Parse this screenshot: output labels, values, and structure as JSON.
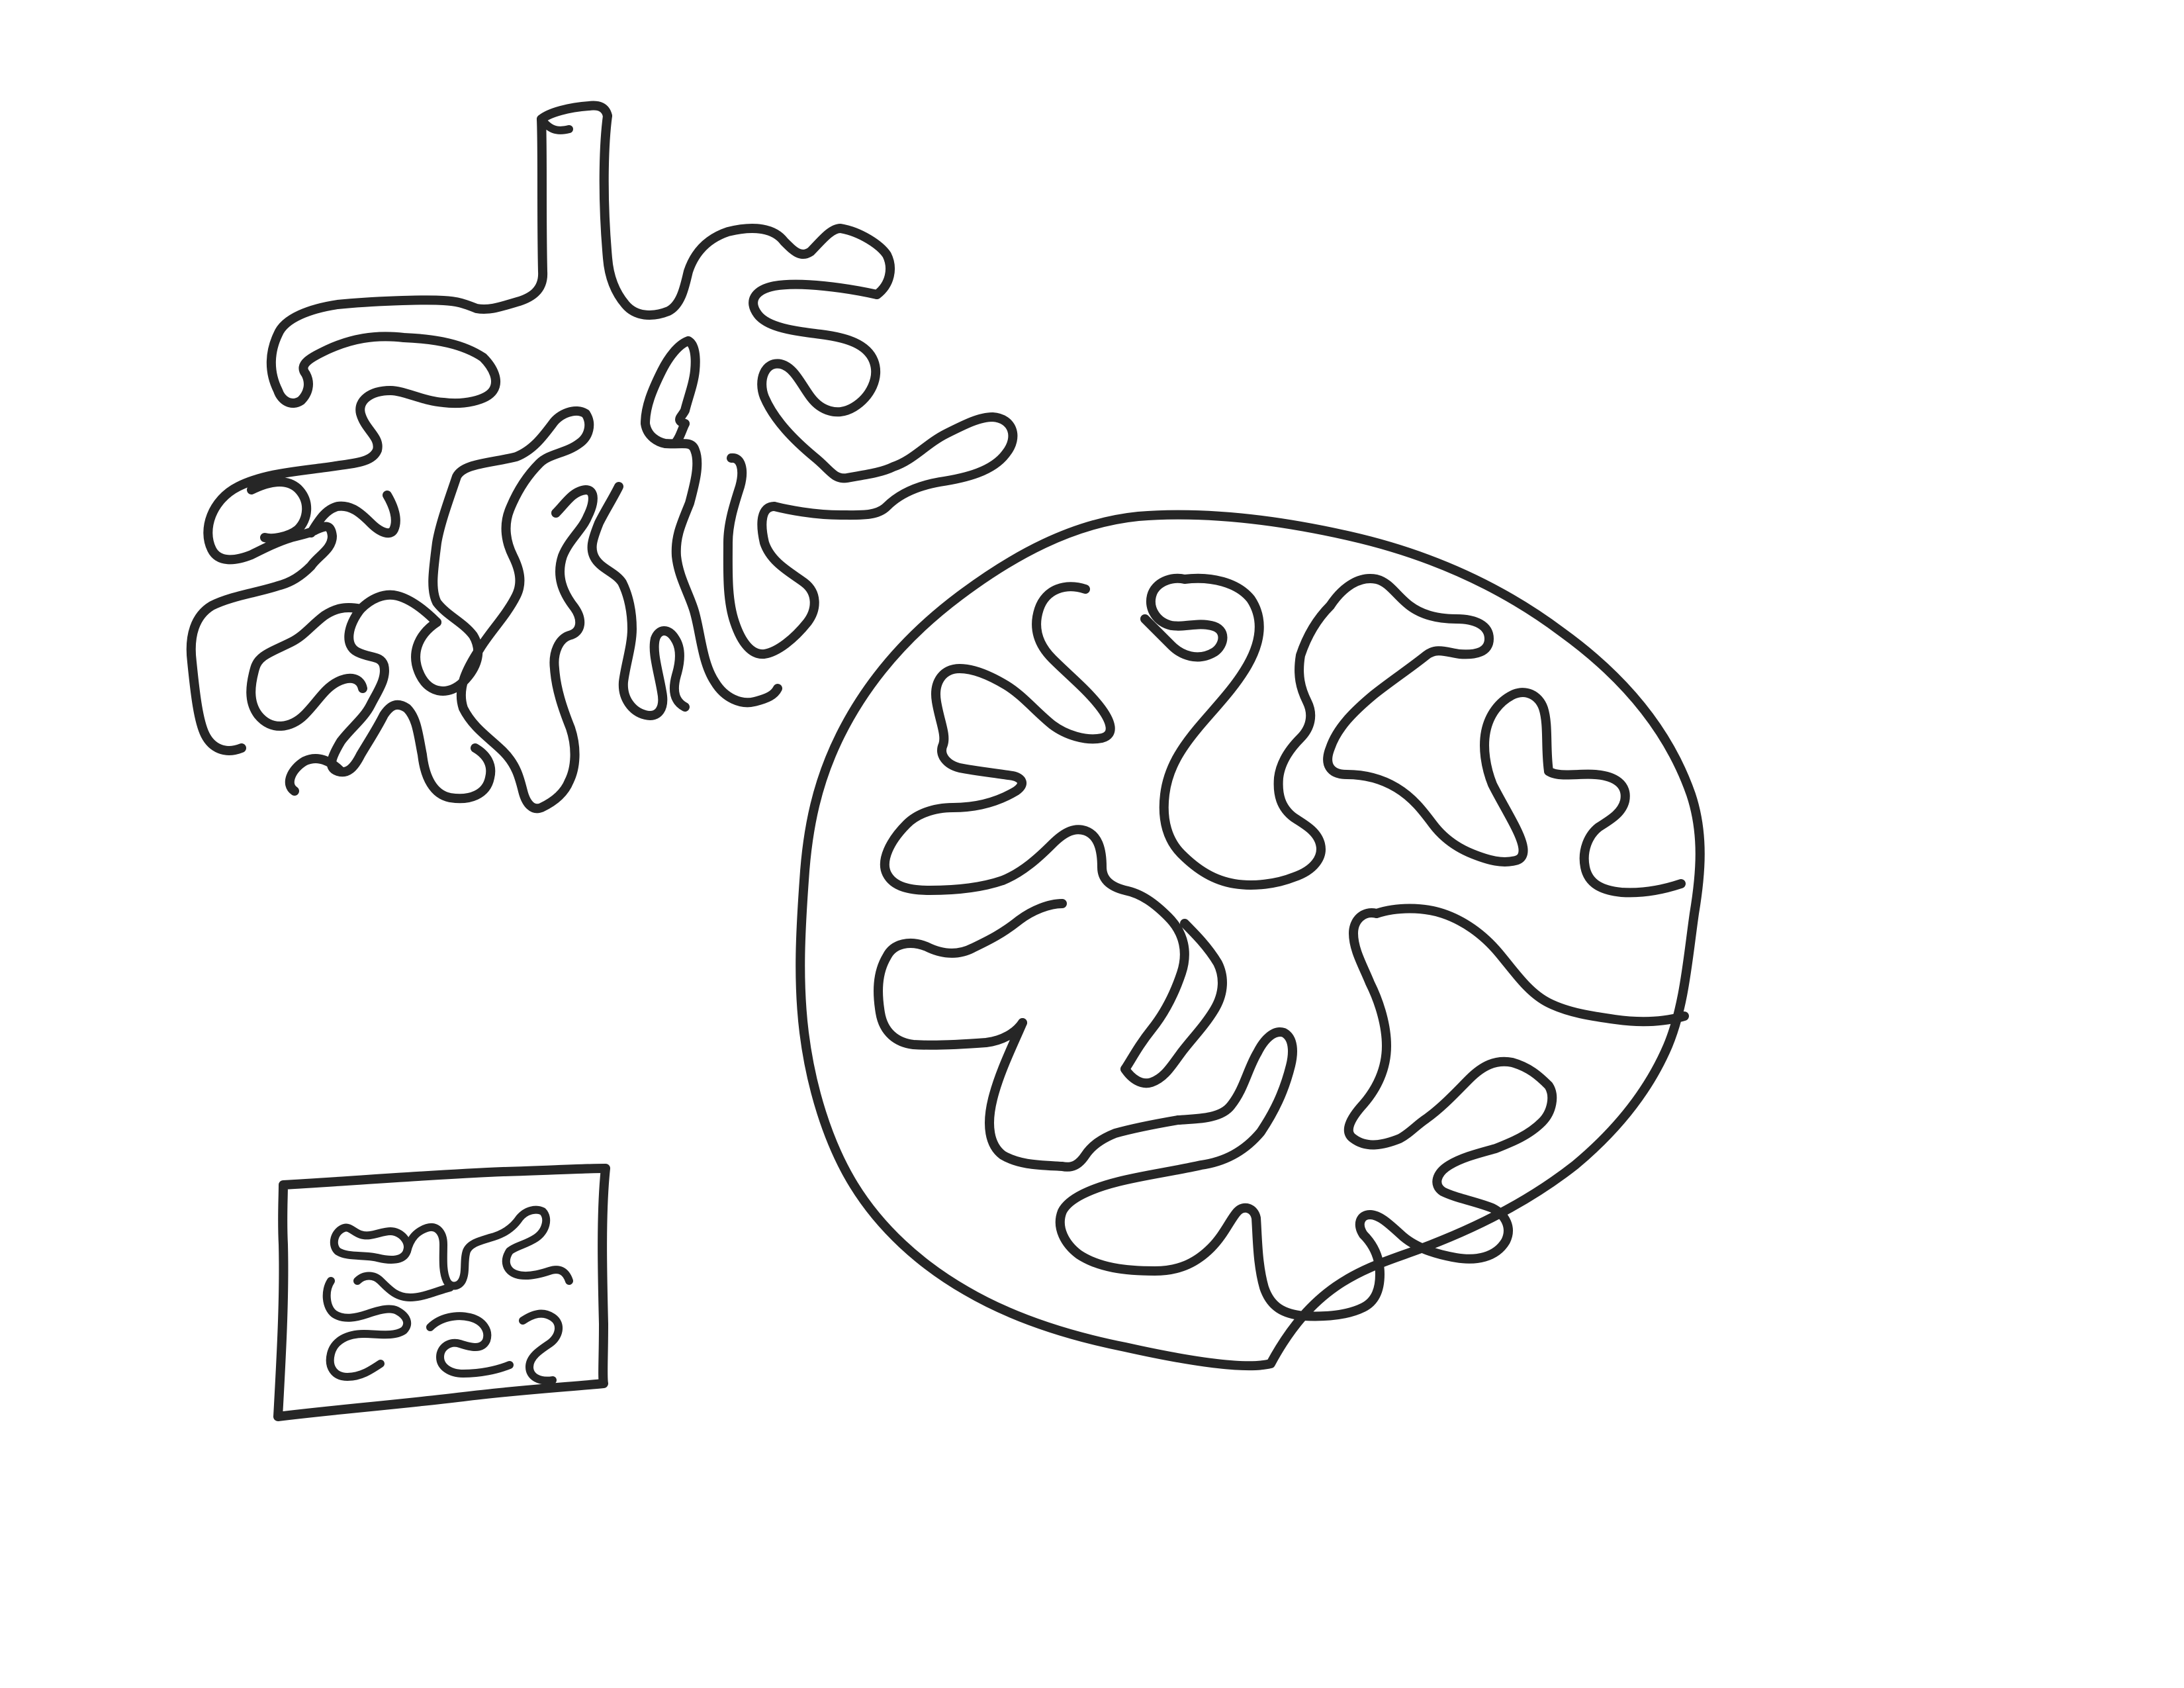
{
  "drawing": {
    "ink_color": "#262626",
    "background_color": "#ffffff",
    "figures": [
      {
        "id": "branched-tree",
        "description_icon": "branching-lobules-icon"
      },
      {
        "id": "round-lobule",
        "description_icon": "circular-section-icon"
      },
      {
        "id": "small-square",
        "description_icon": "square-section-icon"
      }
    ]
  }
}
